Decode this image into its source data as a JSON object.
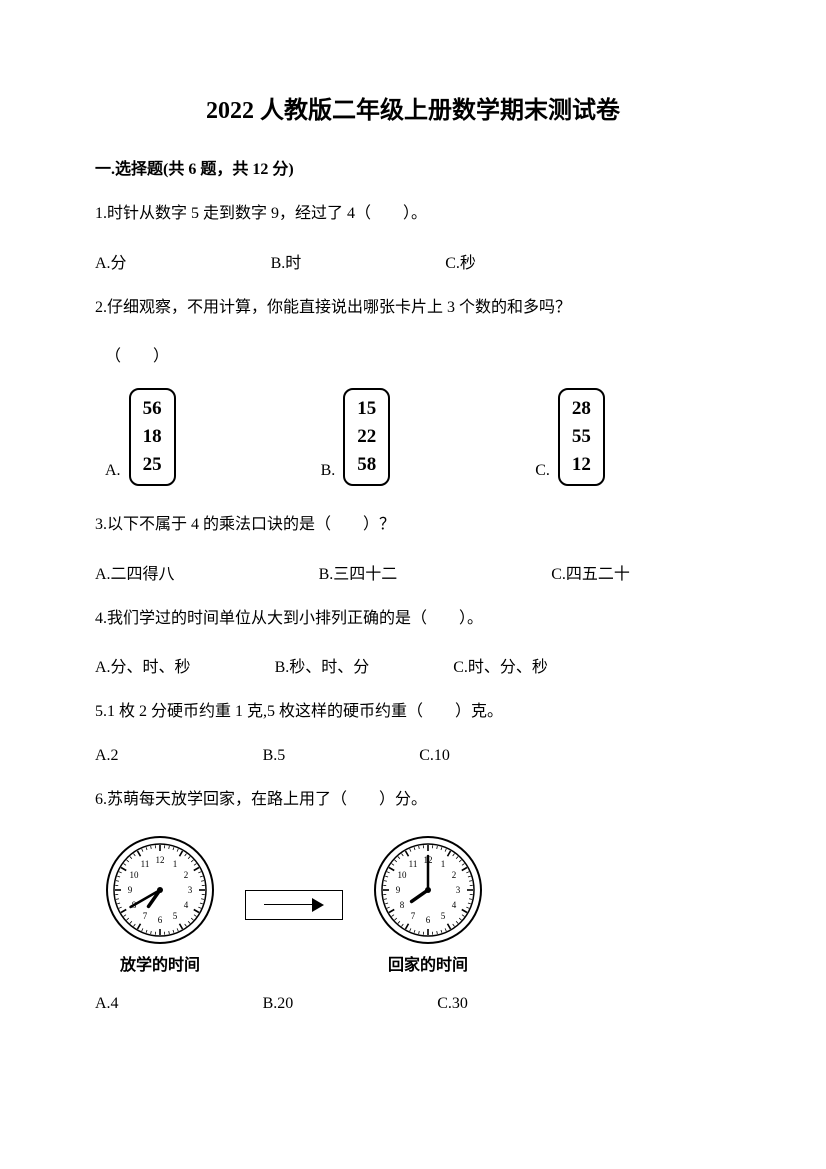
{
  "title": "2022 人教版二年级上册数学期末测试卷",
  "section1": {
    "header": "一.选择题(共 6 题，共 12 分)"
  },
  "q1": {
    "text": "1.时针从数字 5 走到数字 9，经过了 4（　　）。",
    "a": "A.分",
    "b": "B.时",
    "c": "C.秒"
  },
  "q2": {
    "text": "2.仔细观察，不用计算，你能直接说出哪张卡片上 3 个数的和多吗？",
    "paren": "（　　）",
    "cards": {
      "a": {
        "label": "A.",
        "n1": "56",
        "n2": "18",
        "n3": "25"
      },
      "b": {
        "label": "B.",
        "n1": "15",
        "n2": "22",
        "n3": "58"
      },
      "c": {
        "label": "C.",
        "n1": "28",
        "n2": "55",
        "n3": "12"
      }
    }
  },
  "q3": {
    "text": "3.以下不属于 4 的乘法口诀的是（　　）？",
    "a": "A.二四得八",
    "b": "B.三四十二",
    "c": "C.四五二十"
  },
  "q4": {
    "text": "4.我们学过的时间单位从大到小排列正确的是（　　）。",
    "a": "A.分、时、秒",
    "b": "B.秒、时、分",
    "c": "C.时、分、秒"
  },
  "q5": {
    "text": "5.1 枚 2 分硬币约重 1 克,5 枚这样的硬币约重（　　）克。",
    "a": "A.2",
    "b": "B.5",
    "c": "C.10"
  },
  "q6": {
    "text": "6.苏萌每天放学回家，在路上用了（　　）分。",
    "clock1_caption": "放学的时间",
    "clock2_caption": "回家的时间",
    "a": "A.4",
    "b": "B.20",
    "c": "C.30"
  },
  "clock": {
    "face_color": "#ffffff",
    "stroke_color": "#000000",
    "size": 110,
    "clock1": {
      "hour_angle": 215,
      "minute_angle": 240
    },
    "clock2": {
      "hour_angle": 235,
      "minute_angle": 0
    }
  }
}
